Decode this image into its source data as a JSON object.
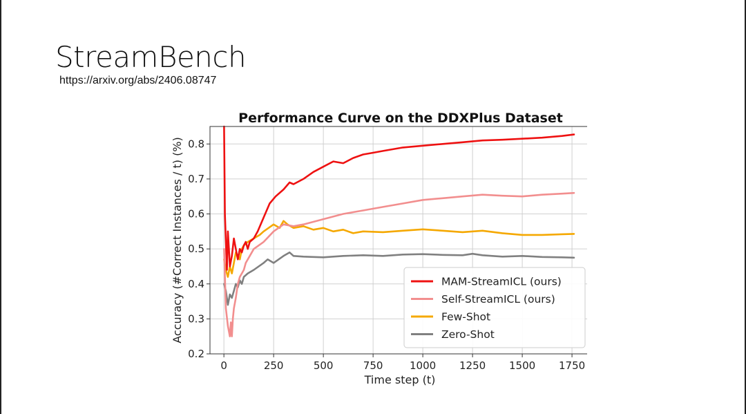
{
  "slide": {
    "title": "StreamBench",
    "subtitle": "https://arxiv.org/abs/2406.08747"
  },
  "chart_data": {
    "type": "line",
    "title": "Performance Curve on the DDXPlus Dataset",
    "xlabel": "Time step (t)",
    "ylabel": "Accuracy (#Correct Instances / t) (%)",
    "xlim": [
      -70,
      1840
    ],
    "ylim": [
      0.2,
      0.85
    ],
    "xticks": [
      0,
      250,
      500,
      750,
      1000,
      1250,
      1500,
      1750
    ],
    "yticks": [
      0.2,
      0.3,
      0.4,
      0.5,
      0.6,
      0.7,
      0.8
    ],
    "grid": true,
    "legend_position": "lower-right",
    "series": [
      {
        "name": "MAM-StreamICL (ours)",
        "color": "#ee1111",
        "x": [
          1,
          5,
          10,
          15,
          20,
          25,
          30,
          40,
          50,
          60,
          70,
          80,
          90,
          100,
          110,
          120,
          130,
          150,
          170,
          200,
          230,
          260,
          300,
          330,
          350,
          400,
          450,
          500,
          550,
          600,
          650,
          700,
          750,
          800,
          900,
          1000,
          1100,
          1200,
          1300,
          1400,
          1500,
          1600,
          1700,
          1760
        ],
        "y": [
          0.85,
          0.6,
          0.52,
          0.44,
          0.55,
          0.5,
          0.45,
          0.48,
          0.53,
          0.5,
          0.47,
          0.5,
          0.49,
          0.51,
          0.52,
          0.5,
          0.52,
          0.53,
          0.55,
          0.59,
          0.63,
          0.65,
          0.67,
          0.69,
          0.685,
          0.7,
          0.72,
          0.735,
          0.75,
          0.745,
          0.76,
          0.77,
          0.775,
          0.78,
          0.79,
          0.795,
          0.8,
          0.805,
          0.81,
          0.812,
          0.815,
          0.818,
          0.823,
          0.827
        ]
      },
      {
        "name": "Self-StreamICL (ours)",
        "color": "#f28e8e",
        "x": [
          1,
          10,
          20,
          30,
          35,
          40,
          45,
          50,
          60,
          70,
          80,
          90,
          100,
          110,
          130,
          150,
          200,
          250,
          300,
          350,
          400,
          500,
          600,
          700,
          800,
          900,
          1000,
          1100,
          1200,
          1300,
          1400,
          1500,
          1600,
          1700,
          1760
        ],
        "y": [
          0.5,
          0.33,
          0.28,
          0.25,
          0.29,
          0.25,
          0.3,
          0.33,
          0.36,
          0.4,
          0.42,
          0.43,
          0.44,
          0.46,
          0.48,
          0.5,
          0.52,
          0.55,
          0.57,
          0.565,
          0.57,
          0.585,
          0.6,
          0.61,
          0.62,
          0.63,
          0.64,
          0.645,
          0.65,
          0.655,
          0.652,
          0.65,
          0.655,
          0.658,
          0.66
        ]
      },
      {
        "name": "Few-Shot",
        "color": "#f5a800",
        "x": [
          1,
          10,
          20,
          30,
          40,
          50,
          60,
          70,
          80,
          90,
          100,
          120,
          150,
          180,
          200,
          250,
          280,
          300,
          320,
          350,
          400,
          450,
          500,
          550,
          600,
          650,
          700,
          800,
          900,
          1000,
          1100,
          1200,
          1300,
          1400,
          1500,
          1600,
          1700,
          1760
        ],
        "y": [
          0.47,
          0.44,
          0.42,
          0.45,
          0.43,
          0.46,
          0.49,
          0.48,
          0.47,
          0.5,
          0.51,
          0.52,
          0.53,
          0.54,
          0.55,
          0.57,
          0.56,
          0.58,
          0.57,
          0.56,
          0.565,
          0.555,
          0.56,
          0.55,
          0.555,
          0.545,
          0.55,
          0.548,
          0.552,
          0.556,
          0.552,
          0.548,
          0.552,
          0.545,
          0.54,
          0.54,
          0.542,
          0.543
        ]
      },
      {
        "name": "Zero-Shot",
        "color": "#808080",
        "x": [
          1,
          10,
          20,
          30,
          40,
          50,
          60,
          70,
          80,
          90,
          100,
          120,
          150,
          200,
          220,
          250,
          300,
          330,
          350,
          400,
          500,
          600,
          700,
          800,
          900,
          1000,
          1100,
          1200,
          1250,
          1300,
          1400,
          1500,
          1600,
          1700,
          1760
        ],
        "y": [
          0.4,
          0.38,
          0.34,
          0.37,
          0.36,
          0.38,
          0.4,
          0.39,
          0.41,
          0.4,
          0.42,
          0.43,
          0.44,
          0.46,
          0.47,
          0.46,
          0.48,
          0.49,
          0.48,
          0.478,
          0.476,
          0.48,
          0.482,
          0.48,
          0.484,
          0.485,
          0.483,
          0.482,
          0.486,
          0.482,
          0.478,
          0.48,
          0.477,
          0.476,
          0.475
        ]
      }
    ]
  }
}
